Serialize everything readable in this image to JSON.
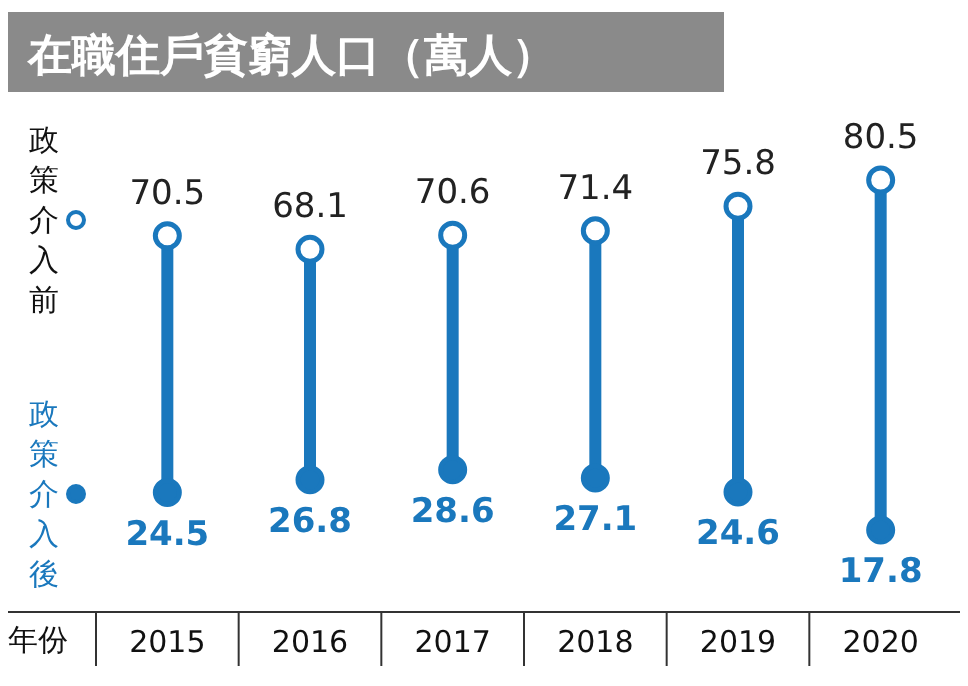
{
  "chart_data": {
    "type": "scatter",
    "title": "在職住戶貧窮人口（萬人）",
    "xlabel": "年份",
    "categories": [
      "2015",
      "2016",
      "2017",
      "2018",
      "2019",
      "2020"
    ],
    "data_labels": true,
    "grid": "x",
    "legend": "left",
    "marker": "circle",
    "series": [
      {
        "name": "政策介入前",
        "color": "#1a78bd",
        "values": [
          70.5,
          68.1,
          70.6,
          71.4,
          75.8,
          80.5
        ]
      },
      {
        "name": "政策介入後",
        "color": "#1a78bd",
        "values": [
          24.5,
          26.8,
          28.6,
          27.1,
          24.6,
          17.8
        ]
      }
    ]
  }
}
